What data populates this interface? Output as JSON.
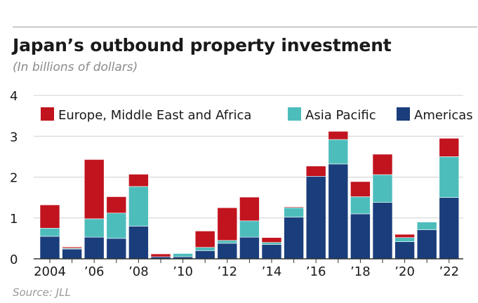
{
  "header": {
    "title": "Japan’s outbound property investment",
    "subtitle": "(In billions of dollars)"
  },
  "footer": {
    "source": "Source: JLL"
  },
  "colors": {
    "emea": "#c1141e",
    "asia_pacific": "#4dbdbc",
    "americas": "#1a3d7c",
    "grid": "#d0d0d0",
    "axis": "#333333"
  },
  "chart_data": {
    "type": "bar",
    "stacked": true,
    "title": "Japan’s outbound property investment",
    "subtitle": "(In billions of dollars)",
    "xlabel": "",
    "ylabel": "",
    "ylim": [
      0,
      4
    ],
    "y_ticks": [
      "0",
      "1",
      "2",
      "3",
      "4"
    ],
    "grid": true,
    "legend_position": "top-left",
    "categories": [
      "2004",
      "2005",
      "2006",
      "2007",
      "2008",
      "2009",
      "2010",
      "2011",
      "2012",
      "2013",
      "2014",
      "2015",
      "2016",
      "2017",
      "2018",
      "2019",
      "2020",
      "2021",
      "2022"
    ],
    "x_tick_labels": [
      "2004",
      "",
      "’06",
      "",
      "’08",
      "",
      "’10",
      "",
      "’12",
      "",
      "’14",
      "",
      "’16",
      "",
      "’18",
      "",
      "’20",
      "",
      "’22"
    ],
    "series": [
      {
        "name": "Americas",
        "color": "#1a3d7c",
        "values": [
          0.55,
          0.24,
          0.53,
          0.5,
          0.8,
          0.05,
          0.05,
          0.2,
          0.38,
          0.53,
          0.35,
          1.02,
          2.02,
          2.32,
          1.1,
          1.38,
          0.42,
          0.71,
          1.5
        ]
      },
      {
        "name": "Asia Pacific",
        "color": "#4dbdbc",
        "values": [
          0.2,
          0.02,
          0.45,
          0.62,
          0.97,
          0.0,
          0.08,
          0.08,
          0.07,
          0.4,
          0.05,
          0.23,
          0.0,
          0.6,
          0.42,
          0.68,
          0.1,
          0.19,
          1.0
        ]
      },
      {
        "name": "Europe, Middle East and Africa",
        "color": "#c1141e",
        "values": [
          0.57,
          0.03,
          1.45,
          0.4,
          0.3,
          0.07,
          0.0,
          0.4,
          0.8,
          0.58,
          0.12,
          0.02,
          0.25,
          0.2,
          0.37,
          0.5,
          0.08,
          0.0,
          0.45
        ]
      }
    ]
  }
}
